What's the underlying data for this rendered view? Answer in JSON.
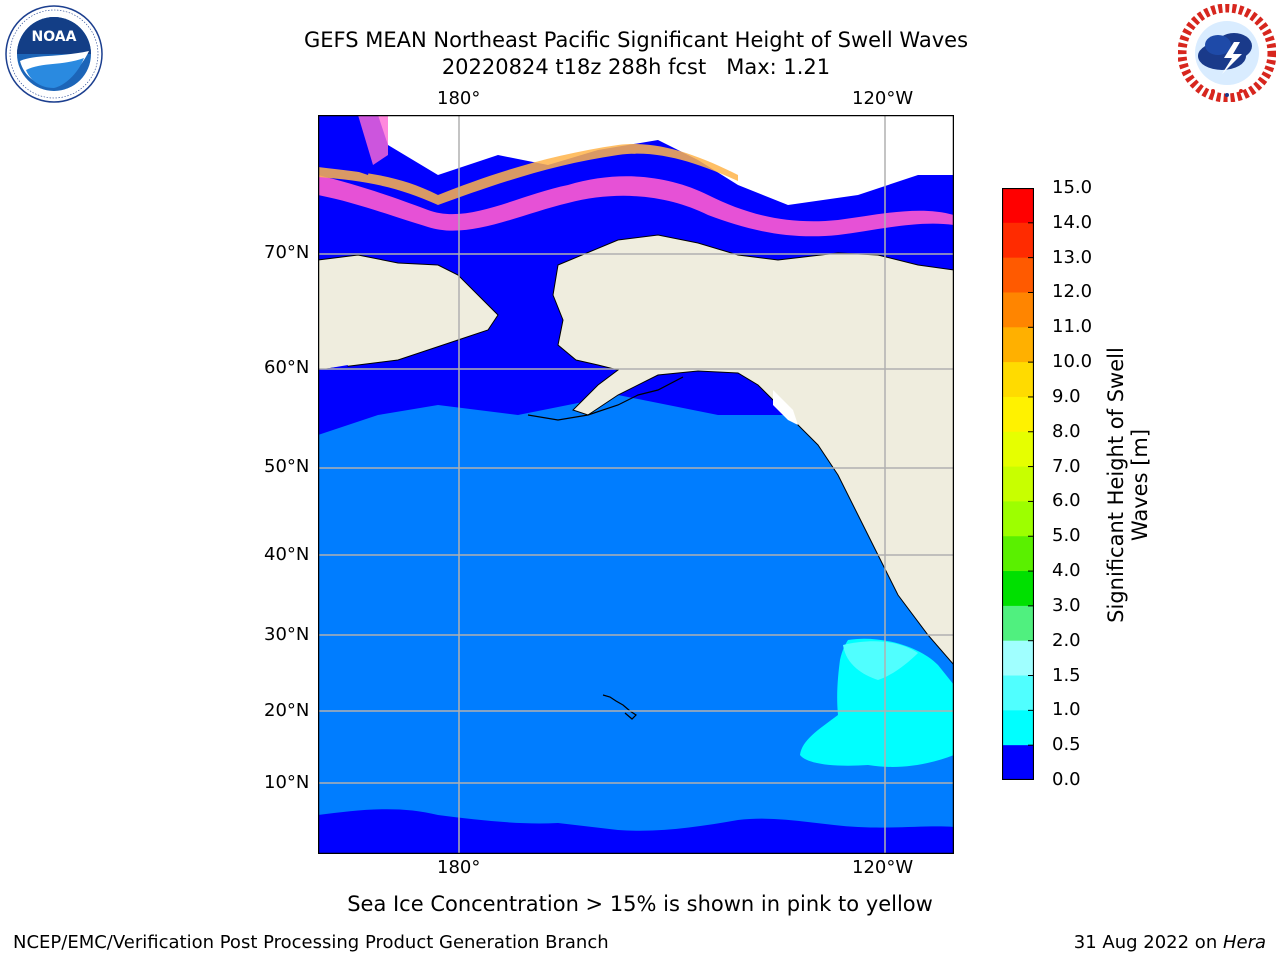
{
  "header": {
    "title_line1": "GEFS MEAN Northeast Pacific Significant Height of Swell Waves",
    "title_line2": "20220824 t18z 288h fcst   Max: 1.21"
  },
  "logos": {
    "left_text": "NOAA",
    "left_ring_text": "NATIONAL OCEANIC AND ATMOSPHERIC ADMINISTRATION · U.S. DEPARTMENT OF COMMERCE",
    "right_ring_text": "NATIONAL WEATHER SERVICE"
  },
  "map": {
    "lon_labels": [
      "180°",
      "120°W"
    ],
    "lat_labels": [
      "70°N",
      "60°N",
      "50°N",
      "40°N",
      "30°N",
      "20°N",
      "10°N"
    ],
    "gridlines": true,
    "land_color": "#efedde",
    "ocean_dominant_color": "#007dff"
  },
  "colorbar": {
    "label": "Significant Height of Swell Waves [m]",
    "ticks": [
      "15.0",
      "14.0",
      "13.0",
      "12.0",
      "11.0",
      "10.0",
      "9.0",
      "8.0",
      "7.0",
      "6.0",
      "5.0",
      "4.0",
      "3.0",
      "2.0",
      "1.5",
      "1.0",
      "0.5",
      "0.0"
    ],
    "colors_top_to_bottom": [
      "#ff0000",
      "#ff2b00",
      "#ff5a00",
      "#ff8500",
      "#ffb000",
      "#ffdb00",
      "#fff200",
      "#e6ff00",
      "#c8ff00",
      "#9dff00",
      "#5af000",
      "#00e000",
      "#50f07f",
      "#a0ffff",
      "#50ffff",
      "#00ffff",
      "#007dff",
      "#0000ff"
    ]
  },
  "caption": "Sea Ice Concentration > 15% is shown in pink to yellow",
  "footer": {
    "left": "NCEP/EMC/Verification Post Processing Product Generation Branch",
    "right_prefix": "31 Aug 2022 on ",
    "right_italic": "Hera"
  }
}
